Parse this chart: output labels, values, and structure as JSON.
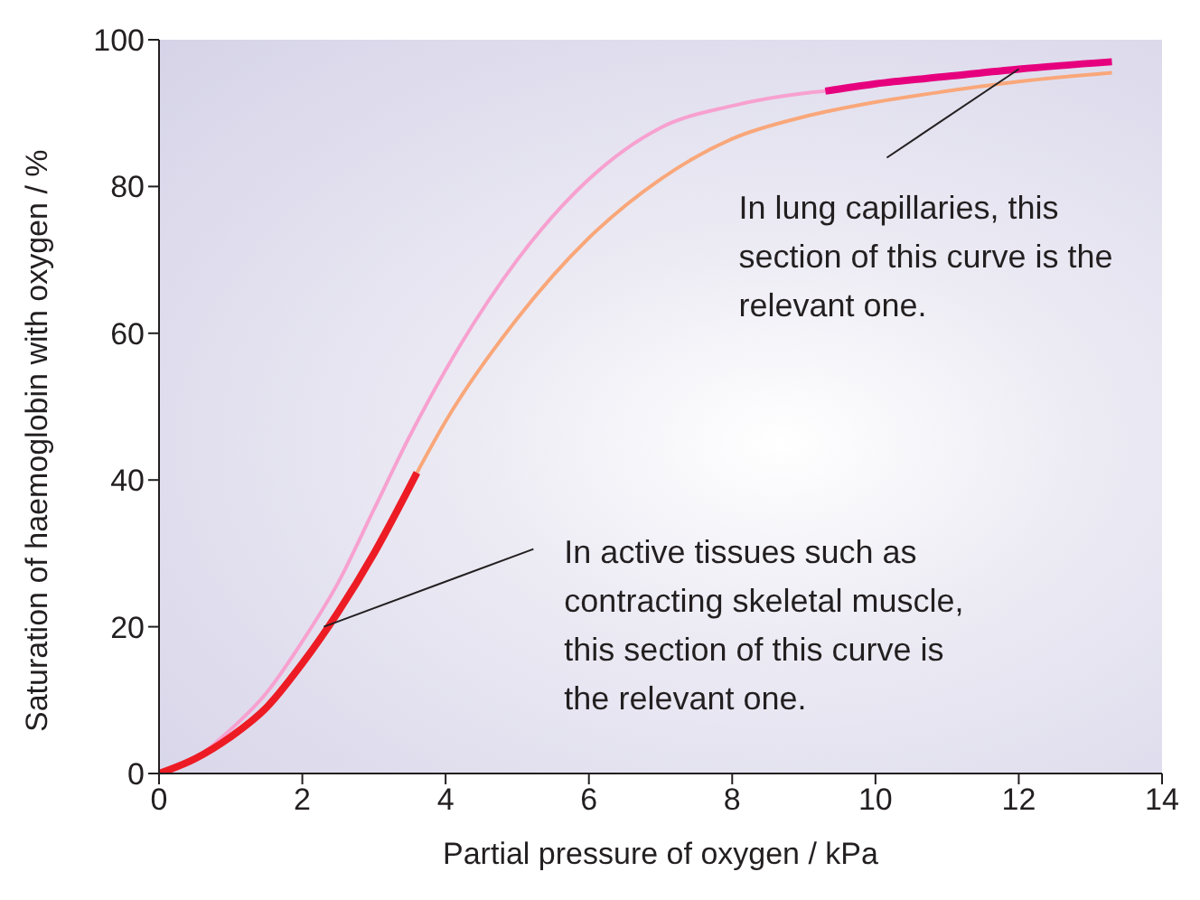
{
  "chart_data": {
    "type": "line",
    "xlabel": "Partial pressure of oxygen / kPa",
    "ylabel": "Saturation of haemoglobin with oxygen / %",
    "xlim": [
      0,
      14
    ],
    "xticks": [
      0,
      2,
      4,
      6,
      8,
      10,
      12,
      14
    ],
    "ylim": [
      0,
      100
    ],
    "yticks": [
      0,
      20,
      40,
      60,
      80,
      100
    ],
    "marker": "none",
    "line_style": "solid",
    "series": [
      {
        "color": "#f7a1d0",
        "x": [
          0,
          0.5,
          1,
          1.5,
          2,
          2.5,
          3,
          3.5,
          4,
          5,
          6,
          7,
          8,
          9,
          9.3
        ],
        "values": [
          0,
          2,
          6,
          11,
          18,
          26,
          36,
          46,
          55,
          70,
          81,
          88,
          91,
          92.7,
          93
        ]
      },
      {
        "color": "#e6007e",
        "x": [
          9.3,
          10,
          11,
          12,
          13.3
        ],
        "values": [
          93,
          94,
          95,
          96,
          97
        ]
      },
      {
        "color": "#f9a77a",
        "x": [
          3.6,
          4,
          5,
          6,
          7,
          8,
          9,
          10,
          11,
          12,
          13.3
        ],
        "values": [
          41,
          48,
          62,
          73,
          81,
          86.5,
          89.5,
          91.5,
          93,
          94.3,
          95.5
        ]
      },
      {
        "color": "#ed1c24",
        "x": [
          0,
          0.5,
          1,
          1.5,
          2,
          2.5,
          3,
          3.6
        ],
        "values": [
          0,
          2,
          5,
          9,
          15,
          22,
          30,
          41
        ]
      }
    ],
    "annotations": [
      {
        "text": "In active tissues such as contracting skeletal muscle, this section of this curve is the relevant one.",
        "x": 2.3,
        "y": 20
      },
      {
        "text": "In lung capillaries, this section of this curve is the relevant one.",
        "x": 12,
        "y": 96
      }
    ]
  }
}
